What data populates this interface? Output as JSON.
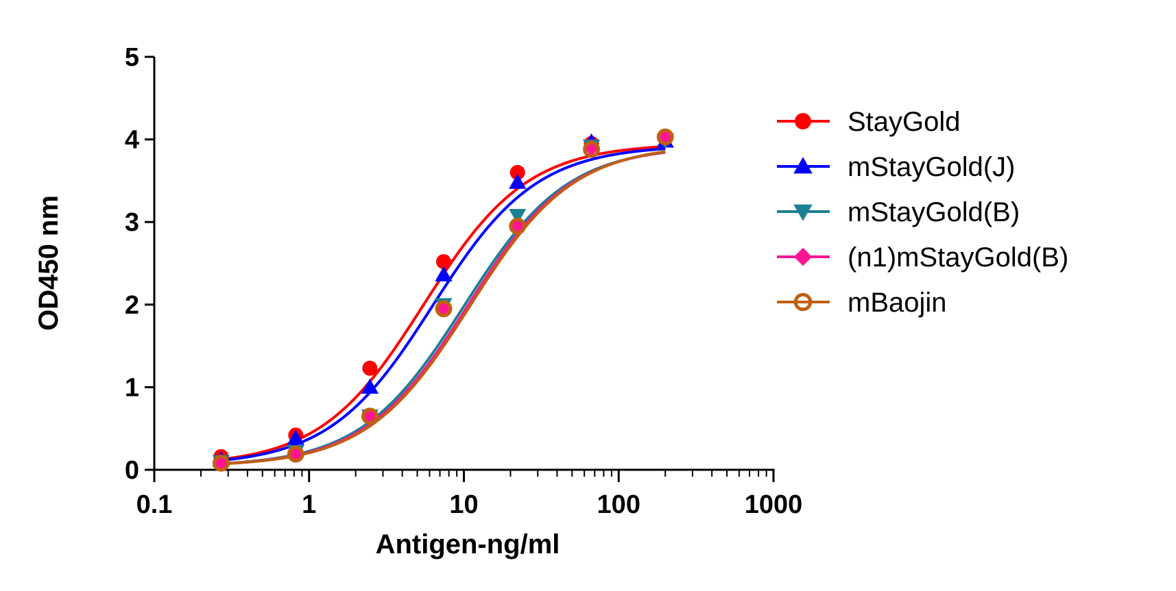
{
  "chart_data": {
    "type": "scatter",
    "title": "",
    "xlabel": "Antigen-ng/ml",
    "ylabel": "OD450 nm",
    "xscale": "log",
    "xlim": [
      0.1,
      1000
    ],
    "ylim": [
      0,
      5
    ],
    "xticks": [
      0.1,
      1,
      10,
      100,
      1000
    ],
    "xtick_labels": [
      "0.1",
      "1",
      "10",
      "100",
      "1000"
    ],
    "yticks": [
      0,
      1,
      2,
      3,
      4,
      5
    ],
    "ytick_labels": [
      "0",
      "1",
      "2",
      "3",
      "4",
      "5"
    ],
    "legend_position": "right",
    "grid": false,
    "x": [
      0.27,
      0.82,
      2.47,
      7.4,
      22.2,
      66.7,
      200
    ],
    "series": [
      {
        "name": "StayGold",
        "color": "#ff0000",
        "marker": "circle",
        "values": [
          0.16,
          0.42,
          1.23,
          2.52,
          3.6,
          3.95,
          4.02
        ],
        "fit": {
          "bottom": 0.05,
          "top": 3.95,
          "ec50": 5.5,
          "hill": 1.3
        }
      },
      {
        "name": "mStayGold(J)",
        "color": "#0000ff",
        "marker": "triangle-up",
        "values": [
          0.12,
          0.38,
          1.0,
          2.36,
          3.48,
          3.97,
          3.98
        ],
        "fit": {
          "bottom": 0.05,
          "top": 3.93,
          "ec50": 6.3,
          "hill": 1.3
        }
      },
      {
        "name": "mStayGold(B)",
        "color": "#1b8092",
        "marker": "triangle-down",
        "values": [
          0.1,
          0.22,
          0.65,
          2.0,
          3.08,
          3.92,
          3.99
        ],
        "fit": {
          "bottom": 0.04,
          "top": 3.92,
          "ec50": 10.0,
          "hill": 1.3
        }
      },
      {
        "name": "(n1)mStayGold(B)",
        "color": "#ff1493",
        "marker": "diamond",
        "values": [
          0.09,
          0.2,
          0.65,
          1.95,
          2.95,
          3.9,
          4.03
        ],
        "fit": {
          "bottom": 0.04,
          "top": 3.93,
          "ec50": 10.6,
          "hill": 1.3
        }
      },
      {
        "name": "mBaojin",
        "color": "#c06010",
        "marker": "circle-open",
        "values": [
          0.08,
          0.19,
          0.65,
          1.95,
          2.95,
          3.88,
          4.03
        ],
        "fit": {
          "bottom": 0.04,
          "top": 3.94,
          "ec50": 11.0,
          "hill": 1.3
        }
      }
    ]
  }
}
